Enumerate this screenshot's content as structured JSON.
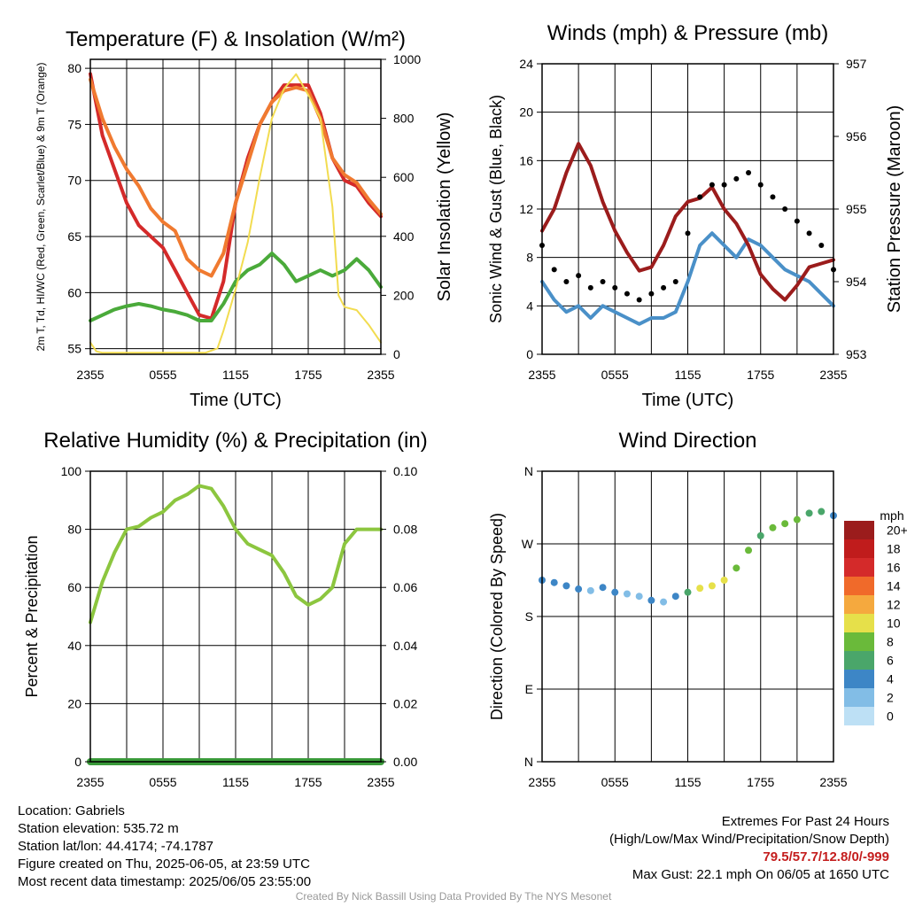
{
  "chart_data": [
    {
      "type": "line",
      "title": "Temperature (F) & Insolation (W/m²)",
      "xlabel": "Time (UTC)",
      "ylabel": "2m T, Td, HI/WC (Red, Green, Scarlet/Blue) & 9m T (Orange)",
      "y2label": "Solar Insolation (Yellow)",
      "xticks": [
        "2355",
        "0555",
        "1155",
        "1755",
        "2355"
      ],
      "xlim": [
        0,
        24
      ],
      "ylim": [
        54.5,
        80.8
      ],
      "yticks": [
        55,
        60,
        65,
        70,
        75,
        80
      ],
      "y2lim": [
        0,
        1000
      ],
      "y2ticks": [
        0,
        200,
        400,
        600,
        800,
        1000
      ],
      "series": [
        {
          "color": "#d42a2a",
          "axis": "left",
          "x": [
            0,
            1,
            2,
            3,
            4,
            5,
            6,
            7,
            8,
            9,
            10,
            11,
            12,
            13,
            14,
            15,
            16,
            17,
            18,
            19,
            20,
            21,
            22,
            23,
            24
          ],
          "values": [
            79.5,
            74,
            71,
            68,
            66,
            65,
            64,
            62,
            60,
            58,
            57.7,
            61,
            68,
            72,
            75,
            77,
            78.5,
            78.5,
            78.5,
            76,
            72,
            70,
            69.5,
            68,
            66.8
          ]
        },
        {
          "color": "#f07a30",
          "axis": "left",
          "x": [
            0,
            1,
            2,
            3,
            4,
            5,
            6,
            7,
            8,
            9,
            10,
            11,
            12,
            13,
            14,
            15,
            16,
            17,
            18,
            19,
            20,
            21,
            22,
            23,
            24
          ],
          "values": [
            79,
            75.5,
            73,
            71,
            69.5,
            67.5,
            66.3,
            65.5,
            63,
            62,
            61.5,
            63.5,
            68,
            71.5,
            75,
            77,
            78,
            78.3,
            78,
            75.5,
            72,
            70.5,
            69.8,
            68.3,
            67
          ]
        },
        {
          "color": "#4aaa3a",
          "axis": "left",
          "x": [
            0,
            1,
            2,
            3,
            4,
            5,
            6,
            7,
            8,
            9,
            10,
            11,
            12,
            13,
            14,
            15,
            16,
            17,
            18,
            19,
            20,
            21,
            22,
            23,
            24
          ],
          "values": [
            57.5,
            58,
            58.5,
            58.8,
            59,
            58.8,
            58.5,
            58.3,
            58,
            57.5,
            57.5,
            59,
            61,
            62,
            62.5,
            63.5,
            62.5,
            61,
            61.5,
            62,
            61.5,
            62,
            63,
            62,
            60.5
          ]
        },
        {
          "color": "#f2dc50",
          "axis": "right",
          "x": [
            0,
            0.5,
            1,
            2,
            4,
            6,
            8,
            9.5,
            10.5,
            11,
            12,
            13,
            14,
            15,
            16,
            17,
            18,
            19,
            20,
            20.5,
            21,
            22,
            23,
            24
          ],
          "values": [
            40,
            10,
            5,
            5,
            5,
            5,
            5,
            5,
            20,
            80,
            220,
            380,
            600,
            800,
            900,
            950,
            880,
            800,
            500,
            200,
            160,
            150,
            100,
            40
          ]
        }
      ]
    },
    {
      "type": "line",
      "title": "Winds (mph) & Pressure (mb)",
      "xlabel": "Time (UTC)",
      "ylabel": "Sonic Wind & Gust (Blue, Black)",
      "y2label": "Station Pressure (Maroon)",
      "xticks": [
        "2355",
        "0555",
        "1155",
        "1755",
        "2355"
      ],
      "xlim": [
        0,
        24
      ],
      "ylim": [
        0,
        24
      ],
      "yticks": [
        0,
        4,
        8,
        12,
        16,
        20,
        24
      ],
      "y2lim": [
        953,
        957
      ],
      "y2ticks": [
        953,
        954,
        955,
        956,
        957
      ],
      "series": [
        {
          "color": "#4a90c8",
          "axis": "left",
          "x": [
            0,
            1,
            2,
            3,
            4,
            5,
            6,
            7,
            8,
            9,
            10,
            11,
            12,
            13,
            14,
            15,
            16,
            17,
            18,
            19,
            20,
            21,
            22,
            23,
            24
          ],
          "values": [
            6,
            4.5,
            3.5,
            4,
            3,
            4,
            3.5,
            3,
            2.5,
            3,
            3,
            3.5,
            6,
            9,
            10,
            9,
            8,
            9.5,
            9,
            8,
            7,
            6.5,
            6,
            5,
            4
          ]
        },
        {
          "color": "#9b1c1c",
          "axis": "right",
          "x": [
            0,
            1,
            2,
            3,
            4,
            5,
            6,
            7,
            8,
            9,
            10,
            11,
            12,
            13,
            14,
            15,
            16,
            17,
            18,
            19,
            20,
            21,
            22,
            23,
            24
          ],
          "values": [
            954.7,
            955.0,
            955.5,
            955.9,
            955.6,
            955.1,
            954.7,
            954.4,
            954.15,
            954.2,
            954.5,
            954.9,
            955.1,
            955.15,
            955.3,
            955.0,
            954.8,
            954.5,
            954.1,
            953.9,
            953.75,
            953.95,
            954.2,
            954.25,
            954.3
          ]
        },
        {
          "color": "#000000",
          "axis": "left",
          "markers": true,
          "x": [
            0,
            1,
            2,
            3,
            4,
            5,
            6,
            7,
            8,
            9,
            10,
            11,
            12,
            13,
            14,
            15,
            16,
            17,
            18,
            19,
            20,
            21,
            22,
            23,
            24
          ],
          "values": [
            9,
            7,
            6,
            6.5,
            5.5,
            6,
            5.5,
            5,
            4.5,
            5,
            5.5,
            6,
            10,
            13,
            14,
            14,
            14.5,
            15,
            14,
            13,
            12,
            11,
            10,
            9,
            7
          ]
        }
      ]
    },
    {
      "type": "line",
      "title": "Relative Humidity (%) & Precipitation (in)",
      "xlabel": "",
      "ylabel": "Percent & Precipitation",
      "xticks": [
        "2355",
        "0555",
        "1155",
        "1755",
        "2355"
      ],
      "xlim": [
        0,
        24
      ],
      "ylim": [
        0,
        100
      ],
      "yticks": [
        0,
        20,
        40,
        60,
        80,
        100
      ],
      "y2lim": [
        0,
        0.1
      ],
      "y2ticks": [
        "0.00",
        "0.02",
        "0.04",
        "0.06",
        "0.08",
        "0.10"
      ],
      "series": [
        {
          "color": "#8cc63f",
          "axis": "left",
          "x": [
            0,
            1,
            2,
            3,
            4,
            5,
            6,
            7,
            8,
            9,
            10,
            11,
            12,
            13,
            14,
            15,
            16,
            17,
            18,
            19,
            20,
            21,
            22,
            23,
            24
          ],
          "values": [
            48,
            62,
            72,
            80,
            81,
            84,
            86,
            90,
            92,
            95,
            94,
            88,
            80,
            75,
            73,
            71,
            65,
            57,
            54,
            56,
            60,
            75,
            80,
            80,
            80
          ]
        },
        {
          "color": "#3a9a3a",
          "axis": "right",
          "x": [
            0,
            24
          ],
          "values": [
            0,
            0
          ]
        }
      ]
    },
    {
      "type": "scatter",
      "title": "Wind Direction",
      "xlabel": "",
      "ylabel": "Direction (Colored By Speed)",
      "xticks": [
        "2355",
        "0555",
        "1155",
        "1755",
        "2355"
      ],
      "xlim": [
        0,
        24
      ],
      "ylim": [
        0,
        360
      ],
      "ytick_values": [
        0,
        90,
        180,
        270,
        360
      ],
      "yticks": [
        "N",
        "E",
        "S",
        "W",
        "N"
      ],
      "colorbar_unit": "mph",
      "colorbar_labels": [
        "0",
        "2",
        "4",
        "6",
        "8",
        "10",
        "12",
        "14",
        "16",
        "18",
        "20+"
      ],
      "colorbar_colors": [
        "#bde0f5",
        "#82bde6",
        "#3d86c6",
        "#4aa66a",
        "#6aba3a",
        "#e6e04a",
        "#f5a93e",
        "#f06a2a",
        "#d42a2a",
        "#c01c1c",
        "#9b1c1c"
      ],
      "x": [
        0,
        1,
        2,
        3,
        4,
        5,
        6,
        7,
        8,
        9,
        10,
        11,
        12,
        13,
        14,
        15,
        16,
        17,
        18,
        19,
        20,
        21,
        22,
        23,
        24
      ],
      "values": [
        225,
        222,
        218,
        214,
        212,
        216,
        210,
        208,
        205,
        200,
        198,
        205,
        210,
        215,
        218,
        225,
        240,
        262,
        280,
        290,
        295,
        300,
        308,
        310,
        305
      ],
      "speeds": [
        4,
        4,
        3,
        4,
        2,
        3,
        4,
        2,
        1,
        3,
        2,
        3,
        5,
        9,
        10,
        9,
        7,
        7,
        6,
        7,
        8,
        7,
        6,
        5,
        4
      ]
    }
  ],
  "info": {
    "location": "Location: Gabriels",
    "elevation": "Station elevation: 535.72 m",
    "latlon": "Station lat/lon: 44.4174; -74.1787",
    "created": "Figure created on Thu, 2025-06-05, at 23:59 UTC",
    "recent": "Most recent data timestamp: 2025/06/05 23:55:00"
  },
  "extremes": {
    "title": "Extremes For Past 24 Hours",
    "subtitle": "(High/Low/Max Wind/Precipitation/Snow Depth)",
    "values": "79.5/57.7/12.8/0/-999",
    "gust": "Max Gust: 22.1 mph On 06/05 at 1650 UTC"
  },
  "credit": "Created By Nick Bassill Using Data Provided By The NYS Mesonet"
}
